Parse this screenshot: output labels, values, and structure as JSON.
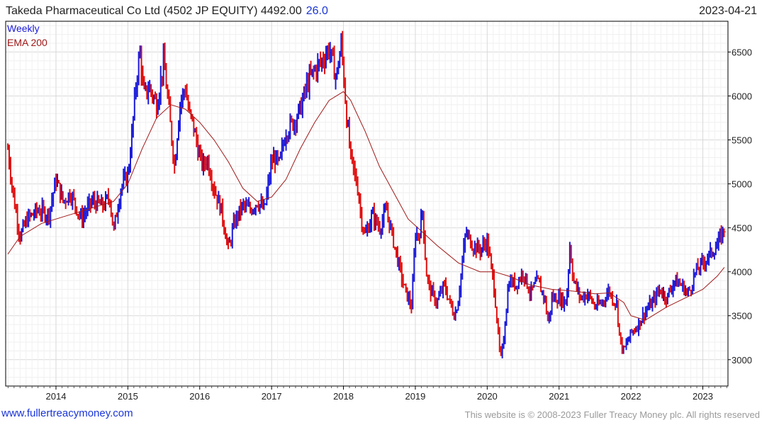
{
  "header": {
    "title": "Takeda Pharmaceutical Co Ltd (4502 JP EQUITY) 4492.00",
    "change": "26.0",
    "date": "2023-04-21"
  },
  "legend": {
    "weekly": "Weekly",
    "ema": "EMA 200"
  },
  "footer": {
    "site": "www.fullertreacymoney.com",
    "copyright": "This website is © 2008-2023 Fuller Treacy Money plc. All rights reserved"
  },
  "colors": {
    "up": "#1a1adb",
    "down": "#e01010",
    "ema": "#a01818",
    "grid": "#d9d9d9",
    "axis": "#000000"
  },
  "chart_data": {
    "type": "line",
    "title": "Takeda Pharmaceutical Co Ltd (4502 JP EQUITY) 4492.00 26.0",
    "x_ticks": [
      "2014",
      "2015",
      "2016",
      "2017",
      "2018",
      "2019",
      "2020",
      "2021",
      "2022",
      "2023"
    ],
    "y_ticks": [
      3000,
      3500,
      4000,
      4500,
      5000,
      5500,
      6000,
      6500
    ],
    "ylim": [
      2700,
      6850
    ],
    "xlim": [
      2013.3,
      2023.35
    ],
    "y_axis_side": "right",
    "grid": true,
    "legend_placement": "top-left",
    "series": [
      {
        "name": "Weekly",
        "style": "price bars (blue up / red down)",
        "x": [
          2013.33,
          2013.4,
          2013.5,
          2013.6,
          2013.75,
          2013.9,
          2014.0,
          2014.1,
          2014.2,
          2014.35,
          2014.5,
          2014.65,
          2014.75,
          2014.8,
          2014.9,
          2015.0,
          2015.05,
          2015.12,
          2015.17,
          2015.22,
          2015.3,
          2015.4,
          2015.5,
          2015.6,
          2015.65,
          2015.72,
          2015.8,
          2015.85,
          2015.9,
          2016.0,
          2016.05,
          2016.1,
          2016.2,
          2016.3,
          2016.4,
          2016.45,
          2016.5,
          2016.6,
          2016.7,
          2016.8,
          2016.9,
          2017.0,
          2017.05,
          2017.1,
          2017.2,
          2017.3,
          2017.4,
          2017.5,
          2017.6,
          2017.7,
          2017.8,
          2017.9,
          2017.97,
          2018.05,
          2018.1,
          2018.2,
          2018.25,
          2018.3,
          2018.4,
          2018.5,
          2018.6,
          2018.75,
          2018.85,
          2018.95,
          2019.0,
          2019.05,
          2019.1,
          2019.15,
          2019.2,
          2019.3,
          2019.4,
          2019.5,
          2019.55,
          2019.6,
          2019.7,
          2019.8,
          2019.9,
          2020.0,
          2020.1,
          2020.17,
          2020.2,
          2020.25,
          2020.3,
          2020.4,
          2020.5,
          2020.6,
          2020.7,
          2020.8,
          2020.85,
          2020.9,
          2021.0,
          2021.1,
          2021.15,
          2021.2,
          2021.3,
          2021.4,
          2021.5,
          2021.6,
          2021.7,
          2021.73,
          2021.8,
          2021.85,
          2021.9,
          2022.0,
          2022.1,
          2022.2,
          2022.3,
          2022.4,
          2022.5,
          2022.6,
          2022.7,
          2022.8,
          2022.9,
          2023.0,
          2023.1,
          2023.2,
          2023.3
        ],
        "values": [
          5400,
          4900,
          4400,
          4600,
          4700,
          4650,
          5050,
          4800,
          4900,
          4600,
          4800,
          4750,
          4850,
          4450,
          4950,
          5100,
          5500,
          6200,
          6500,
          6000,
          6100,
          5900,
          6400,
          5600,
          5200,
          5900,
          6100,
          5800,
          5700,
          5300,
          5200,
          5300,
          4950,
          4700,
          4250,
          4450,
          4600,
          4750,
          4700,
          4800,
          4700,
          5250,
          5300,
          5200,
          5600,
          5700,
          5850,
          6150,
          6300,
          6400,
          6550,
          6200,
          6600,
          5700,
          5300,
          4950,
          4600,
          4400,
          4650,
          4500,
          4700,
          4150,
          3800,
          3600,
          4450,
          4400,
          4700,
          4000,
          3800,
          3650,
          3850,
          3600,
          3500,
          3700,
          4450,
          4300,
          4250,
          4350,
          3800,
          3100,
          3000,
          3450,
          3900,
          3850,
          4000,
          3750,
          3900,
          3700,
          3400,
          3700,
          3700,
          3650,
          4300,
          3900,
          3700,
          3750,
          3600,
          3650,
          3800,
          3700,
          3650,
          3200,
          3100,
          3300,
          3400,
          3550,
          3650,
          3800,
          3700,
          3900,
          3850,
          3750,
          4000,
          4100,
          4200,
          4300,
          4492
        ]
      },
      {
        "name": "EMA 200",
        "style": "line",
        "x": [
          2013.33,
          2013.5,
          2013.8,
          2014.0,
          2014.4,
          2014.8,
          2015.0,
          2015.2,
          2015.4,
          2015.6,
          2015.8,
          2016.0,
          2016.2,
          2016.4,
          2016.6,
          2016.8,
          2017.0,
          2017.2,
          2017.4,
          2017.6,
          2017.8,
          2018.0,
          2018.1,
          2018.3,
          2018.5,
          2018.7,
          2018.9,
          2019.1,
          2019.3,
          2019.6,
          2019.9,
          2020.1,
          2020.3,
          2020.6,
          2020.9,
          2021.2,
          2021.5,
          2021.7,
          2021.9,
          2022.0,
          2022.2,
          2022.5,
          2022.8,
          2023.0,
          2023.2,
          2023.3
        ],
        "values": [
          4200,
          4400,
          4550,
          4600,
          4700,
          4800,
          5000,
          5400,
          5750,
          5900,
          5850,
          5700,
          5500,
          5250,
          4950,
          4800,
          4850,
          5050,
          5400,
          5700,
          5950,
          6050,
          5950,
          5600,
          5200,
          4900,
          4600,
          4450,
          4300,
          4100,
          4000,
          4000,
          3950,
          3850,
          3800,
          3780,
          3750,
          3760,
          3650,
          3500,
          3450,
          3600,
          3720,
          3800,
          3950,
          4050
        ]
      }
    ]
  }
}
